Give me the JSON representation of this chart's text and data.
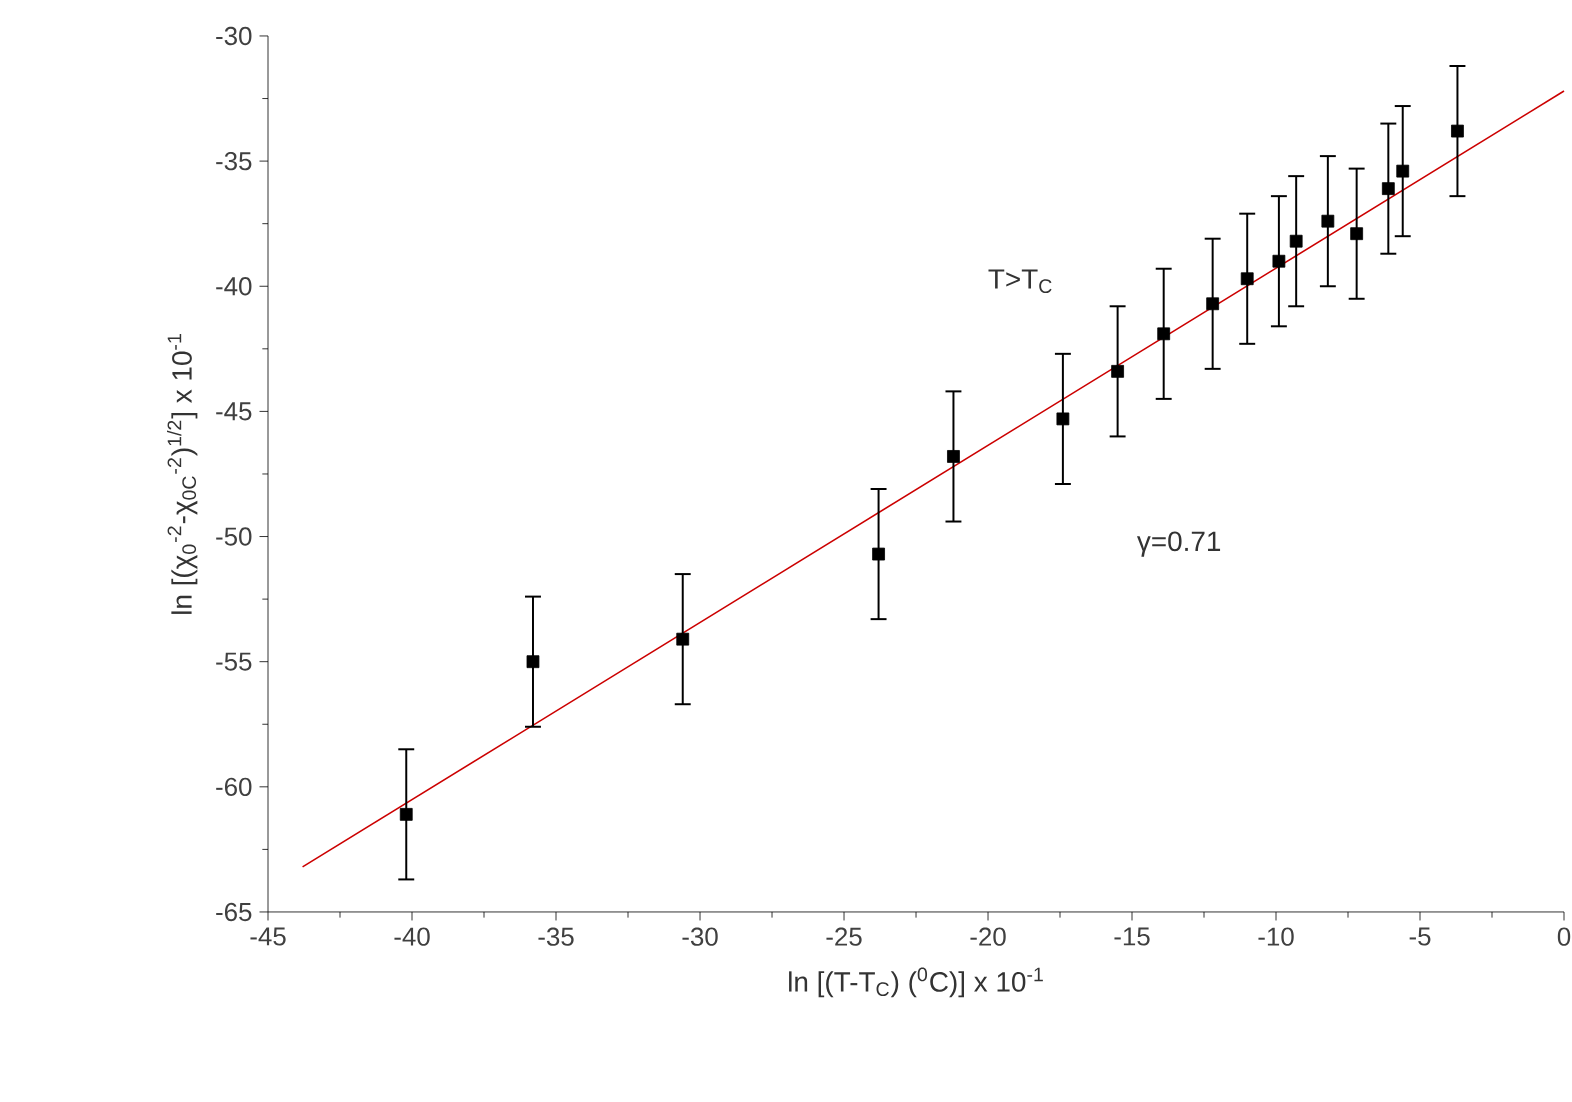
{
  "chart_data": {
    "type": "scatter",
    "xlabel": "ln [(T-T$_{C}$) ($^{0}$C)] x 10$^{-1}$",
    "ylabel": "ln [(χ$_{0}$$^{-2}$-χ$_{0C}$$^{-2}$)$^{1/2}$] x 10$^{-1}$",
    "annotations": [
      "T>T$_{C}$",
      "γ=0.71"
    ],
    "xlim": [
      -45,
      0
    ],
    "ylim": [
      -65,
      -30
    ],
    "xticks": [
      -45,
      -40,
      -35,
      -30,
      -25,
      -20,
      -15,
      -10,
      -5,
      0
    ],
    "yticks": [
      -65,
      -60,
      -55,
      -50,
      -45,
      -40,
      -35,
      -30
    ],
    "series": [
      {
        "marker": "square",
        "color": "#000000",
        "x": [
          -40.2,
          -35.8,
          -30.6,
          -23.8,
          -21.2,
          -17.4,
          -15.5,
          -13.9,
          -12.2,
          -11.0,
          -9.9,
          -9.3,
          -8.2,
          -7.2,
          -6.1,
          -5.6,
          -3.7
        ],
        "values": [
          -61.1,
          -55.0,
          -54.1,
          -50.7,
          -46.8,
          -45.3,
          -43.4,
          -41.9,
          -40.7,
          -39.7,
          -39.0,
          -38.2,
          -37.4,
          -37.9,
          -36.1,
          -35.4,
          -33.8
        ],
        "errors": [
          2.6,
          2.6,
          2.6,
          2.6,
          2.6,
          2.6,
          2.6,
          2.6,
          2.6,
          2.6,
          2.6,
          2.6,
          2.6,
          2.6,
          2.6,
          2.6,
          2.6
        ]
      },
      {
        "type": "line",
        "color": "#cc0000",
        "x": [
          -43.8,
          0
        ],
        "values": [
          -63.2,
          -32.2
        ]
      }
    ]
  }
}
